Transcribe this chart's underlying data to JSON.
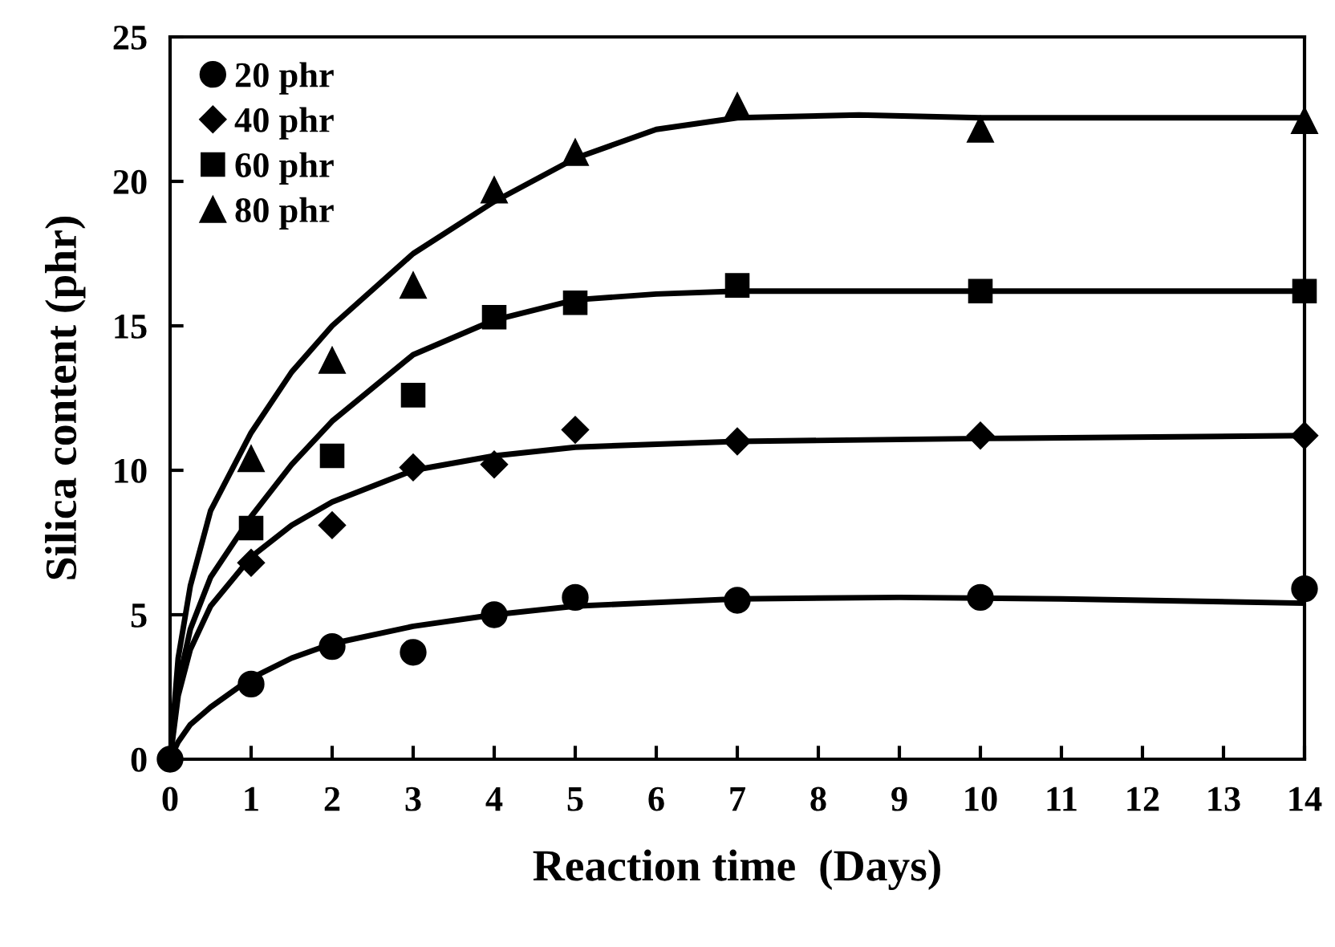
{
  "chart_data": {
    "type": "scatter",
    "xlabel": "Reaction time  (Days)",
    "ylabel": "Silica content (phr)",
    "xlim": [
      0,
      14
    ],
    "ylim": [
      0,
      25
    ],
    "xticks": [
      0,
      1,
      2,
      3,
      4,
      5,
      6,
      7,
      8,
      9,
      10,
      11,
      12,
      13,
      14
    ],
    "yticks": [
      0,
      5,
      10,
      15,
      20,
      25
    ],
    "grid": false,
    "legend": "top left",
    "series": [
      {
        "name": "20 phr",
        "marker": "circle",
        "color": "#000000",
        "x": [
          0,
          1,
          2,
          3,
          4,
          5,
          7,
          10,
          14
        ],
        "values": [
          0,
          2.6,
          3.9,
          3.7,
          5.0,
          5.6,
          5.5,
          5.6,
          5.9
        ]
      },
      {
        "name": "40 phr",
        "marker": "diamond",
        "color": "#000000",
        "x": [
          1,
          2,
          3,
          4,
          5,
          7,
          10,
          14
        ],
        "values": [
          6.8,
          8.1,
          10.1,
          10.2,
          11.4,
          11.0,
          11.2,
          11.2
        ]
      },
      {
        "name": "60 phr",
        "marker": "square",
        "color": "#000000",
        "x": [
          1,
          2,
          3,
          4,
          5,
          7,
          10,
          14
        ],
        "values": [
          8.0,
          10.5,
          12.6,
          15.3,
          15.8,
          16.4,
          16.2,
          16.2
        ]
      },
      {
        "name": "80 phr",
        "marker": "triangle",
        "color": "#000000",
        "x": [
          1,
          2,
          3,
          4,
          5,
          7,
          10,
          14
        ],
        "values": [
          10.4,
          13.8,
          16.4,
          19.7,
          21.0,
          22.6,
          21.8,
          22.1
        ]
      },
      {
        "type": "line",
        "marker": "none",
        "line_style": "solid",
        "color": "#000000",
        "x": [
          0,
          0.1,
          0.25,
          0.5,
          1,
          1.5,
          2,
          3,
          4,
          5,
          7,
          9,
          11,
          14
        ],
        "values": [
          0,
          0.6,
          1.2,
          1.8,
          2.8,
          3.5,
          4.0,
          4.6,
          5.0,
          5.3,
          5.55,
          5.6,
          5.55,
          5.4
        ]
      },
      {
        "type": "line",
        "marker": "none",
        "line_style": "solid",
        "color": "#000000",
        "x": [
          0,
          0.1,
          0.25,
          0.5,
          1,
          1.5,
          2,
          3,
          4,
          5,
          7,
          10,
          14
        ],
        "values": [
          0,
          2.2,
          3.8,
          5.3,
          7.0,
          8.1,
          8.9,
          10.0,
          10.5,
          10.8,
          11.0,
          11.1,
          11.2
        ]
      },
      {
        "type": "line",
        "marker": "none",
        "line_style": "solid",
        "color": "#000000",
        "x": [
          0,
          0.1,
          0.25,
          0.5,
          1,
          1.5,
          2,
          3,
          4,
          5,
          6,
          7,
          10,
          14
        ],
        "values": [
          0,
          2.6,
          4.5,
          6.3,
          8.4,
          10.2,
          11.7,
          14.0,
          15.2,
          15.9,
          16.1,
          16.2,
          16.2,
          16.2
        ]
      },
      {
        "type": "line",
        "marker": "none",
        "line_style": "solid",
        "color": "#000000",
        "x": [
          0,
          0.1,
          0.25,
          0.5,
          1,
          1.5,
          2,
          3,
          4,
          5,
          6,
          7,
          8.5,
          10,
          14
        ],
        "values": [
          0,
          3.5,
          6.0,
          8.6,
          11.3,
          13.4,
          15.0,
          17.5,
          19.3,
          20.8,
          21.8,
          22.2,
          22.3,
          22.2,
          22.2
        ]
      }
    ]
  }
}
